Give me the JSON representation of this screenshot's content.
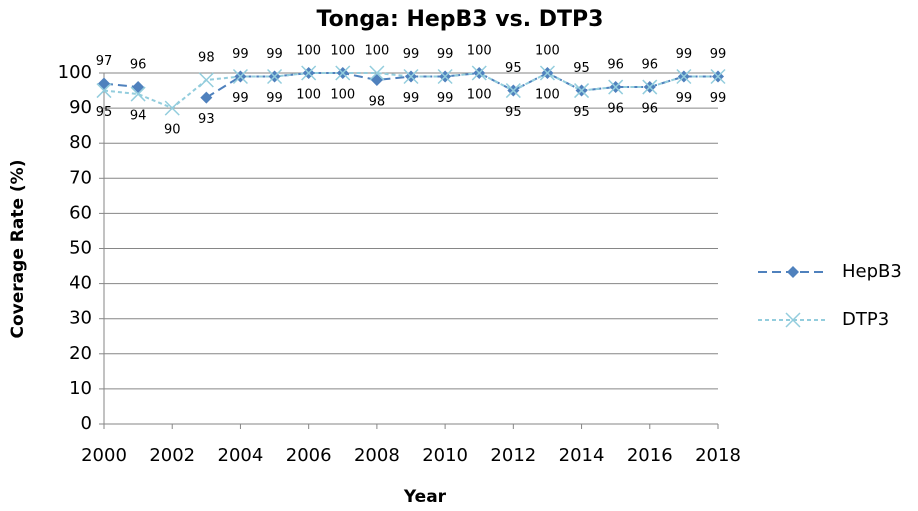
{
  "chart_data": {
    "type": "line",
    "title": "Tonga: HepB3 vs. DTP3",
    "xlabel": "Year",
    "ylabel": "Coverage Rate (%)",
    "x": [
      2000,
      2001,
      2002,
      2003,
      2004,
      2005,
      2006,
      2007,
      2008,
      2009,
      2010,
      2011,
      2012,
      2013,
      2014,
      2015,
      2016,
      2017,
      2018
    ],
    "series": [
      {
        "name": "HepB3",
        "color": "#4f81bd",
        "values": [
          97,
          96,
          null,
          93,
          99,
          99,
          100,
          100,
          98,
          99,
          99,
          100,
          95,
          100,
          95,
          96,
          96,
          99,
          99
        ]
      },
      {
        "name": "DTP3",
        "color": "#93cddd",
        "values": [
          95,
          94,
          90,
          98,
          99,
          99,
          100,
          100,
          100,
          99,
          99,
          100,
          95,
          100,
          95,
          96,
          96,
          99,
          99
        ]
      }
    ],
    "xlim": [
      2000,
      2018
    ],
    "xticks": [
      2000,
      2002,
      2004,
      2006,
      2008,
      2010,
      2012,
      2014,
      2016,
      2018
    ],
    "ylim": [
      0,
      100
    ],
    "yticks": [
      0,
      10,
      20,
      30,
      40,
      50,
      60,
      70,
      80,
      90,
      100
    ],
    "grid": true,
    "legend": "right"
  }
}
